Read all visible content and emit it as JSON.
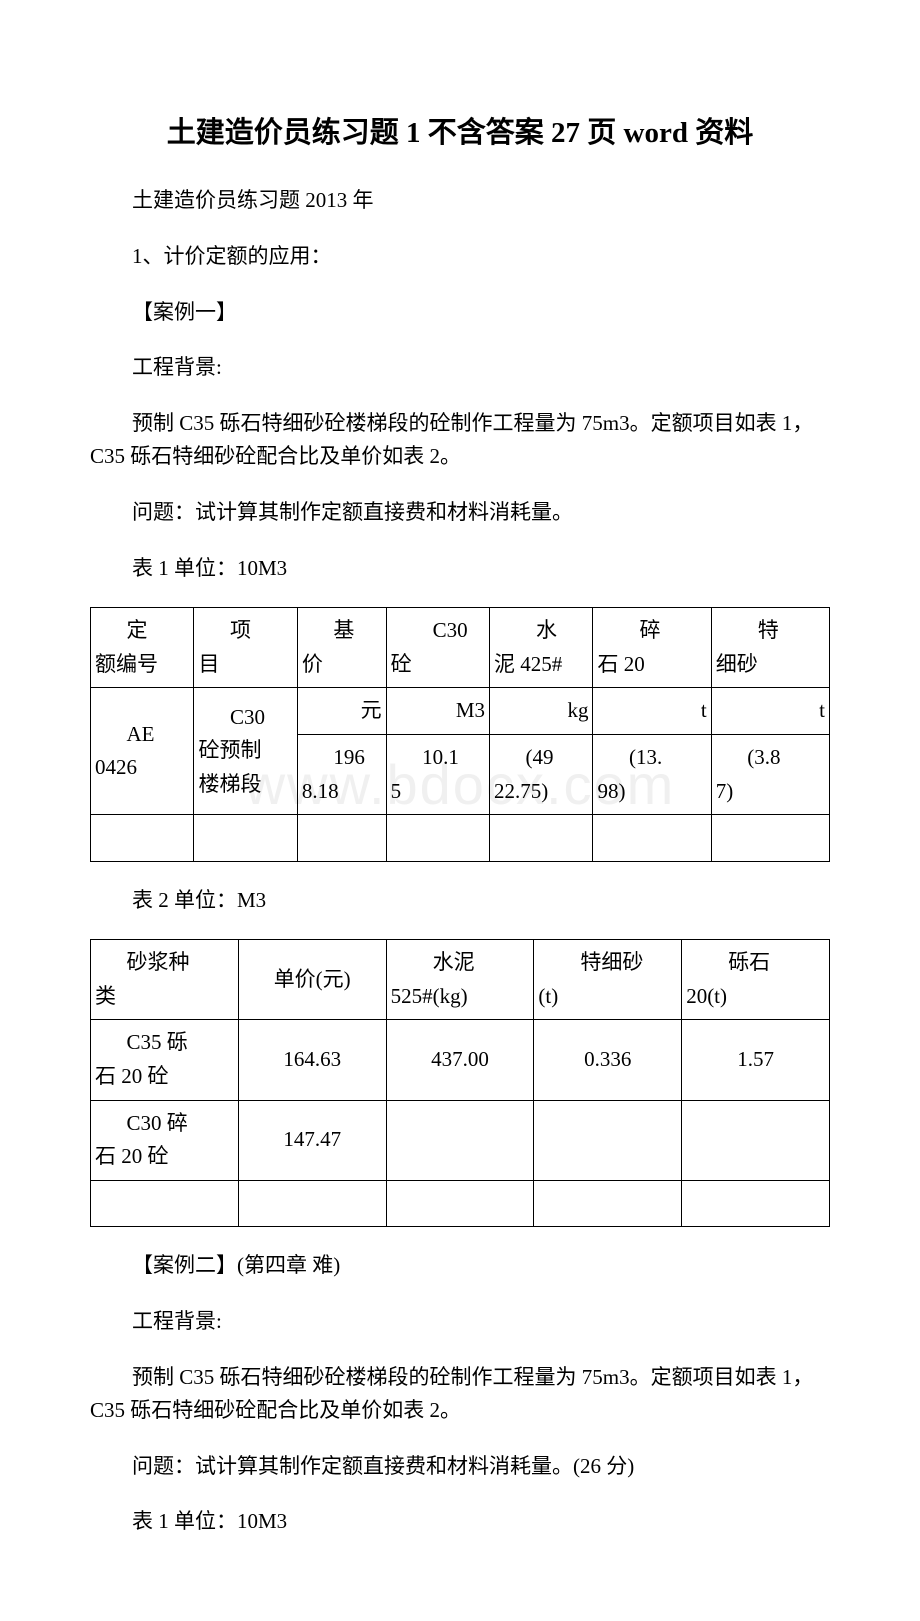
{
  "title": "土建造价员练习题 1 不含答案 27 页 word 资料",
  "intro": "土建造价员练习题 2013 年",
  "item1": "1、计价定额的应用：",
  "case1_label": "【案例一】",
  "bg_label": "工程背景:",
  "bg_text1": "预制 C35 砾石特细砂砼楼梯段的砼制作工程量为 75m3。定额项目如表 1，C35 砾石特细砂砼配合比及单价如表 2。",
  "question1": "问题：试计算其制作定额直接费和材料消耗量。",
  "table1_caption": "表 1   单位：10M3",
  "table1": {
    "headers": {
      "col1_l1": "定",
      "col1_l2": "额编号",
      "col2_l1": "项",
      "col2_l2": "目",
      "col3_l1": "基",
      "col3_l2": "价",
      "col4_l1": "C30",
      "col4_l2": "砼",
      "col5_l1": "水",
      "col5_l2": "泥 425#",
      "col6_l1": "碎",
      "col6_l2": "石 20",
      "col7_l1": "特",
      "col7_l2": "细砂"
    },
    "row2": {
      "col1_l1": "AE",
      "col1_l2": "0426",
      "col2_l1": "C30",
      "col2_l2": "砼预制",
      "col2_l3": "楼梯段",
      "col3": "元",
      "col4": "M3",
      "col5": "kg",
      "col6": "t",
      "col7": "t"
    },
    "row3": {
      "col3_l1": "196",
      "col3_l2": "8.18",
      "col4_l1": "10.1",
      "col4_l2": "5",
      "col5_l1": "(49",
      "col5_l2": "22.75)",
      "col6_l1": "(13.",
      "col6_l2": "98)",
      "col7_l1": "(3.8",
      "col7_l2": "7)"
    }
  },
  "table2_caption": "表 2   单位：M3",
  "table2": {
    "headers": {
      "col1_l1": "砂浆种",
      "col1_l2": "类",
      "col2": "单价(元)",
      "col3_l1": "水泥",
      "col3_l2": "525#(kg)",
      "col4_l1": "特细砂",
      "col4_l2": "(t)",
      "col5_l1": "砾石",
      "col5_l2": "20(t)"
    },
    "row1": {
      "col1_l1": "C35 砾",
      "col1_l2": "石 20 砼",
      "col2": "164.63",
      "col3": "437.00",
      "col4": "0.336",
      "col5": "1.57"
    },
    "row2": {
      "col1_l1": "C30 碎",
      "col1_l2": "石 20 砼",
      "col2": "147.47"
    }
  },
  "case2_label": "【案例二】(第四章 难)",
  "bg_text2": "预制 C35 砾石特细砂砼楼梯段的砼制作工程量为 75m3。定额项目如表 1，C35 砾石特细砂砼配合比及单价如表 2。",
  "question2": "问题：试计算其制作定额直接费和材料消耗量。(26 分)",
  "table1_caption_2": "表 1   单位：10M3",
  "watermark": "www.bdocx.com"
}
